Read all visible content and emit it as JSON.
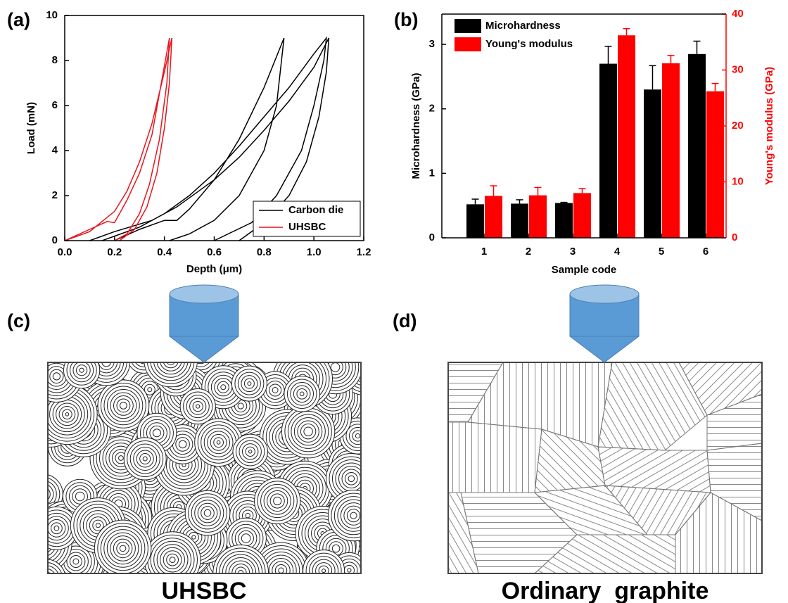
{
  "chart_data": [
    {
      "type": "line",
      "panel_label": "(a)",
      "x_label": "Depth (μm)",
      "y_label": "Load (mN)",
      "xlim": [
        0,
        1.2
      ],
      "xticks": [
        {
          "value": 0,
          "label": "0.0"
        },
        {
          "value": 0.2,
          "label": "0.2"
        },
        {
          "value": 0.4,
          "label": "0.4"
        },
        {
          "value": 0.6,
          "label": "0.6"
        },
        {
          "value": 0.8,
          "label": "0.8"
        },
        {
          "value": 1,
          "label": "1.0"
        },
        {
          "value": 1.2,
          "label": "1.2"
        }
      ],
      "ylim": [
        0,
        10
      ],
      "yticks": [
        0,
        2,
        4,
        6,
        8,
        10
      ],
      "legend": "lower right",
      "series": [
        {
          "name": "Carbon die",
          "color": "#000000",
          "x": [
            0.2,
            0.3,
            0.4,
            0.45,
            0.5,
            0.6,
            0.7,
            0.8,
            0.88,
            0.87,
            0.85,
            0.8,
            0.7,
            0.6,
            0.5,
            0.42,
            null,
            0.1,
            0.2,
            0.35,
            0.4,
            0.5,
            0.6,
            0.7,
            0.8,
            0.9,
            1.0,
            1.05,
            1.04,
            1.0,
            0.95,
            0.85,
            0.75,
            0.6,
            null,
            0.15,
            0.3,
            0.45,
            0.6,
            0.7,
            0.8,
            0.9,
            1.0,
            1.06,
            1.05,
            1.02,
            0.97,
            0.9,
            0.8,
            0.7
          ],
          "values": [
            0,
            0.5,
            0.9,
            0.9,
            1.4,
            2.7,
            4.5,
            6.8,
            9,
            8,
            6,
            4,
            2,
            0.9,
            0.3,
            0,
            null,
            0,
            0.4,
            0.9,
            1.2,
            2,
            3,
            4.2,
            5.5,
            6.8,
            8.3,
            9,
            8,
            6,
            4,
            2,
            0.8,
            0,
            null,
            0,
            0.6,
            1.5,
            2.7,
            3.7,
            4.9,
            6.2,
            7.7,
            9,
            7.5,
            5.5,
            3.5,
            2,
            0.8,
            0
          ]
        },
        {
          "name": "UHSBC",
          "color": "#e8141c",
          "x": [
            0,
            0.1,
            0.2,
            0.25,
            0.3,
            0.35,
            0.4,
            0.43,
            0.42,
            0.4,
            0.37,
            0.33,
            0.28,
            0.22,
            null,
            0,
            0.1,
            0.17,
            0.2,
            0.25,
            0.3,
            0.35,
            0.42,
            0.41,
            0.38,
            0.34,
            0.3,
            0.25,
            0.2
          ],
          "values": [
            0,
            0.4,
            1.3,
            2.2,
            3.5,
            5.2,
            7.5,
            9,
            7,
            5,
            3,
            1.5,
            0.5,
            0,
            null,
            0,
            0.5,
            0.85,
            0.8,
            1.8,
            3,
            4.7,
            9,
            7,
            4.5,
            2.5,
            1.2,
            0.3,
            0
          ]
        }
      ]
    },
    {
      "type": "bar",
      "panel_label": "(b)",
      "x_label": "Sample code",
      "y_label": "Microhardness (GPa)",
      "y2_label": "Young's modulus (GPa)",
      "categories": [
        "1",
        "2",
        "3",
        "4",
        "5",
        "6"
      ],
      "ylim": [
        0,
        3.47
      ],
      "yticks": [
        0,
        1,
        2,
        3
      ],
      "y2lim": [
        0,
        40
      ],
      "y2ticks": [
        0,
        10,
        20,
        30,
        40
      ],
      "legend": "upper left",
      "series": [
        {
          "name": "Microhardness",
          "color": "#000000",
          "values": [
            0.52,
            0.53,
            0.54,
            2.7,
            2.3,
            2.85
          ],
          "errors": [
            0.08,
            0.06,
            0.01,
            0.27,
            0.37,
            0.2
          ]
        },
        {
          "name": "Young's modulus",
          "color": "#ff0000",
          "axis": "y2",
          "values": [
            7.5,
            7.6,
            8,
            36.2,
            31.2,
            26.2
          ],
          "errors": [
            1.8,
            1.4,
            0.8,
            1.2,
            1.4,
            1.4
          ]
        }
      ]
    }
  ],
  "diagrams": [
    {
      "panel_label": "(c)",
      "caption": "UHSBC"
    },
    {
      "panel_label": "(d)",
      "caption": "Ordinary  graphite"
    }
  ]
}
